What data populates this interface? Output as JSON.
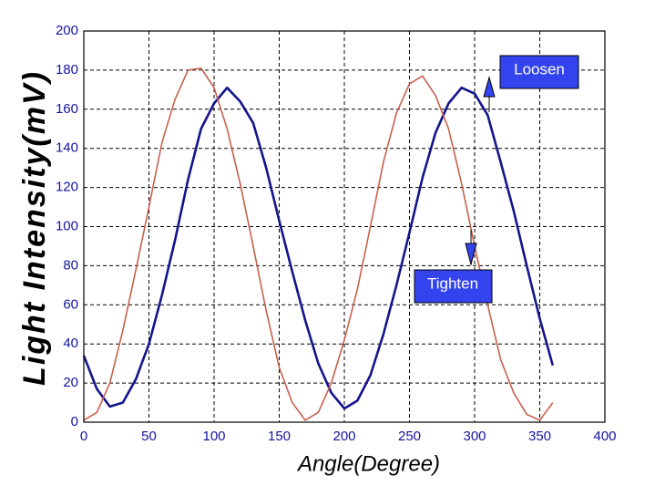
{
  "chart_data": {
    "type": "line",
    "y_label": "Light Intensity(mV)",
    "x_label": "Angle(Degree)",
    "x": [
      0,
      10,
      20,
      30,
      40,
      50,
      60,
      70,
      80,
      90,
      100,
      110,
      120,
      130,
      140,
      150,
      160,
      170,
      180,
      190,
      200,
      210,
      220,
      230,
      240,
      250,
      260,
      270,
      280,
      290,
      300,
      310,
      320,
      330,
      340,
      350,
      360
    ],
    "series": [
      {
        "color": "#14148c",
        "values": [
          34,
          17,
          8,
          10,
          22,
          40,
          65,
          93,
          124,
          150,
          163,
          171,
          164,
          153,
          130,
          103,
          77,
          52,
          30,
          15,
          7,
          11,
          24,
          45,
          70,
          97,
          125,
          148,
          163,
          171,
          168,
          157,
          133,
          108,
          80,
          53,
          29
        ]
      },
      {
        "color": "#c8604c",
        "values": [
          1,
          5,
          20,
          47,
          78,
          110,
          143,
          165,
          180,
          181,
          171,
          150,
          122,
          90,
          57,
          28,
          10,
          1,
          5,
          20,
          42,
          68,
          100,
          133,
          158,
          173,
          177,
          167,
          150,
          122,
          90,
          60,
          32,
          15,
          4,
          1,
          10
        ]
      }
    ],
    "xlim": [
      0,
      400
    ],
    "xticks": [
      0,
      50,
      100,
      150,
      200,
      250,
      300,
      350,
      400
    ],
    "ylim": [
      0,
      200
    ],
    "yticks": [
      0,
      20,
      40,
      60,
      80,
      100,
      120,
      140,
      160,
      180,
      200
    ],
    "grid": true,
    "annotations": [
      "Loosen",
      "Tighten"
    ]
  }
}
